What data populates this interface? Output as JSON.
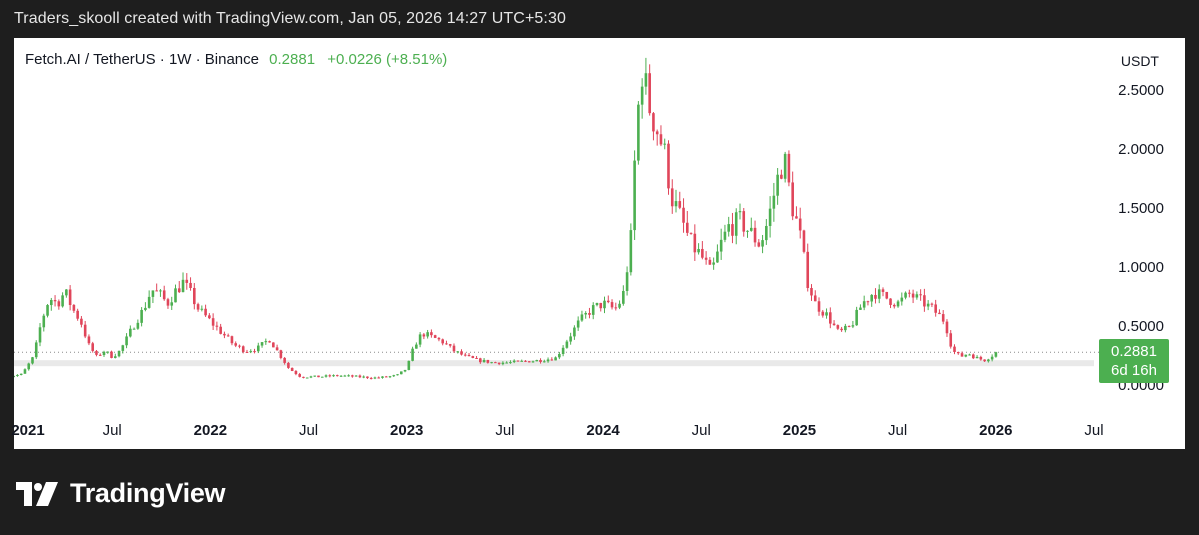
{
  "header": {
    "credit": "Traders_skooll created with TradingView.com, Jan 05, 2026 14:27 UTC+5:30"
  },
  "symbol": {
    "name": "Fetch.AI / TetherUS · 1W · Binance",
    "price": "0.2881",
    "change": "+0.0226 (+8.51%)"
  },
  "price_scale": {
    "unit": "USDT"
  },
  "badge": {
    "price": "0.2881",
    "countdown": "6d 16h"
  },
  "brand": {
    "name": "TradingView",
    "logo_icon": "tradingview-logo-icon"
  },
  "colors": {
    "up": "#4caf50",
    "down": "#e0455a",
    "badge": "#4caf50",
    "background": "#1e1e1e"
  },
  "chart_data": {
    "type": "candlestick",
    "title": "Fetch.AI / TetherUS · 1W · Binance",
    "ylabel": "USDT",
    "yticks": [
      "2.5000",
      "2.0000",
      "1.5000",
      "1.0000",
      "0.5000",
      "0.0000"
    ],
    "ytick_values": [
      2.5,
      2.0,
      1.5,
      1.0,
      0.5,
      0.0
    ],
    "ylim": [
      -0.1,
      2.95
    ],
    "xticks": [
      {
        "label": "2021",
        "t": 2021.0,
        "year": true
      },
      {
        "label": "Jul",
        "t": 2021.5,
        "year": false
      },
      {
        "label": "2022",
        "t": 2022.0,
        "year": true
      },
      {
        "label": "Jul",
        "t": 2022.5,
        "year": false
      },
      {
        "label": "2023",
        "t": 2023.0,
        "year": true
      },
      {
        "label": "Jul",
        "t": 2023.5,
        "year": false
      },
      {
        "label": "2024",
        "t": 2024.0,
        "year": true
      },
      {
        "label": "Jul",
        "t": 2024.5,
        "year": false
      },
      {
        "label": "2025",
        "t": 2025.0,
        "year": true
      },
      {
        "label": "Jul",
        "t": 2025.5,
        "year": false
      },
      {
        "label": "2026",
        "t": 2026.0,
        "year": true
      },
      {
        "label": "Jul",
        "t": 2026.5,
        "year": false
      }
    ],
    "xlim": [
      2021.0,
      2026.5
    ],
    "last_price": 0.2881,
    "series_close": [
      [
        2020.96,
        0.08
      ],
      [
        2021.04,
        0.1
      ],
      [
        2021.1,
        0.25
      ],
      [
        2021.14,
        0.55
      ],
      [
        2021.18,
        0.75
      ],
      [
        2021.22,
        0.7
      ],
      [
        2021.26,
        0.8
      ],
      [
        2021.3,
        0.65
      ],
      [
        2021.34,
        0.55
      ],
      [
        2021.38,
        0.35
      ],
      [
        2021.42,
        0.25
      ],
      [
        2021.46,
        0.3
      ],
      [
        2021.5,
        0.25
      ],
      [
        2021.54,
        0.3
      ],
      [
        2021.58,
        0.42
      ],
      [
        2021.62,
        0.55
      ],
      [
        2021.66,
        0.65
      ],
      [
        2021.7,
        0.82
      ],
      [
        2021.74,
        0.78
      ],
      [
        2021.78,
        0.7
      ],
      [
        2021.82,
        0.8
      ],
      [
        2021.86,
        0.88
      ],
      [
        2021.9,
        0.78
      ],
      [
        2021.94,
        0.65
      ],
      [
        2022.0,
        0.55
      ],
      [
        2022.06,
        0.45
      ],
      [
        2022.12,
        0.35
      ],
      [
        2022.18,
        0.3
      ],
      [
        2022.24,
        0.32
      ],
      [
        2022.3,
        0.4
      ],
      [
        2022.34,
        0.3
      ],
      [
        2022.4,
        0.15
      ],
      [
        2022.46,
        0.08
      ],
      [
        2022.55,
        0.08
      ],
      [
        2022.65,
        0.09
      ],
      [
        2022.75,
        0.08
      ],
      [
        2022.85,
        0.07
      ],
      [
        2022.95,
        0.09
      ],
      [
        2023.0,
        0.15
      ],
      [
        2023.04,
        0.35
      ],
      [
        2023.08,
        0.45
      ],
      [
        2023.12,
        0.42
      ],
      [
        2023.18,
        0.38
      ],
      [
        2023.24,
        0.3
      ],
      [
        2023.3,
        0.25
      ],
      [
        2023.36,
        0.22
      ],
      [
        2023.44,
        0.2
      ],
      [
        2023.52,
        0.2
      ],
      [
        2023.6,
        0.21
      ],
      [
        2023.68,
        0.22
      ],
      [
        2023.76,
        0.24
      ],
      [
        2023.82,
        0.4
      ],
      [
        2023.88,
        0.55
      ],
      [
        2023.94,
        0.65
      ],
      [
        2024.0,
        0.7
      ],
      [
        2024.06,
        0.65
      ],
      [
        2024.1,
        0.75
      ],
      [
        2024.14,
        1.2
      ],
      [
        2024.17,
        2.2
      ],
      [
        2024.2,
        2.7
      ],
      [
        2024.23,
        2.4
      ],
      [
        2024.27,
        2.2
      ],
      [
        2024.31,
        2.0
      ],
      [
        2024.35,
        1.6
      ],
      [
        2024.4,
        1.4
      ],
      [
        2024.45,
        1.2
      ],
      [
        2024.5,
        1.1
      ],
      [
        2024.55,
        0.95
      ],
      [
        2024.6,
        1.2
      ],
      [
        2024.64,
        1.35
      ],
      [
        2024.7,
        1.4
      ],
      [
        2024.75,
        1.3
      ],
      [
        2024.8,
        1.2
      ],
      [
        2024.84,
        1.4
      ],
      [
        2024.88,
        1.7
      ],
      [
        2024.92,
        1.95
      ],
      [
        2024.96,
        1.55
      ],
      [
        2025.0,
        1.3
      ],
      [
        2025.04,
        0.9
      ],
      [
        2025.08,
        0.7
      ],
      [
        2025.14,
        0.6
      ],
      [
        2025.2,
        0.45
      ],
      [
        2025.26,
        0.5
      ],
      [
        2025.32,
        0.7
      ],
      [
        2025.38,
        0.8
      ],
      [
        2025.44,
        0.75
      ],
      [
        2025.5,
        0.7
      ],
      [
        2025.56,
        0.78
      ],
      [
        2025.62,
        0.72
      ],
      [
        2025.68,
        0.65
      ],
      [
        2025.74,
        0.55
      ],
      [
        2025.78,
        0.3
      ],
      [
        2025.82,
        0.25
      ],
      [
        2025.86,
        0.28
      ],
      [
        2025.9,
        0.24
      ],
      [
        2025.94,
        0.22
      ],
      [
        2025.98,
        0.26
      ],
      [
        2026.01,
        0.2881
      ]
    ]
  }
}
